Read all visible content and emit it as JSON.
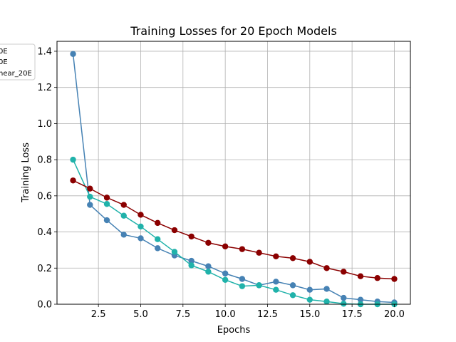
{
  "chart_data": {
    "type": "line",
    "title": "Training Losses for 20 Epoch Models",
    "xlabel": "Epochs",
    "ylabel": "Training Loss",
    "xlim": [
      0.05,
      20.95
    ],
    "ylim": [
      0,
      1.455
    ],
    "xticks": [
      2.5,
      5.0,
      7.5,
      10.0,
      12.5,
      15.0,
      17.5,
      20.0
    ],
    "xtick_labels": [
      "2.5",
      "5.0",
      "7.5",
      "10.0",
      "12.5",
      "15.0",
      "17.5",
      "20.0"
    ],
    "yticks": [
      0.0,
      0.2,
      0.4,
      0.6,
      0.8,
      1.0,
      1.2,
      1.4
    ],
    "ytick_labels": [
      "0.0",
      "0.2",
      "0.4",
      "0.6",
      "0.8",
      "1.0",
      "1.2",
      "1.4"
    ],
    "grid": true,
    "legend_position": "upper-left, partially cut off",
    "x": [
      1,
      2,
      3,
      4,
      5,
      6,
      7,
      8,
      9,
      10,
      11,
      12,
      13,
      14,
      15,
      16,
      17,
      18,
      19,
      20
    ],
    "series": [
      {
        "name": "0E",
        "color": "#4682b4",
        "values": [
          1.385,
          0.55,
          0.465,
          0.385,
          0.365,
          0.31,
          0.27,
          0.24,
          0.21,
          0.17,
          0.14,
          0.105,
          0.125,
          0.105,
          0.08,
          0.085,
          0.035,
          0.025,
          0.015,
          0.01
        ]
      },
      {
        "name": "0E",
        "color": "#20b2aa",
        "values": [
          0.8,
          0.595,
          0.555,
          0.49,
          0.43,
          0.36,
          0.29,
          0.215,
          0.18,
          0.135,
          0.1,
          0.105,
          0.08,
          0.05,
          0.025,
          0.015,
          0.003,
          0.0,
          0.0,
          0.0
        ]
      },
      {
        "name": "near_20E",
        "color": "#8b0000",
        "values": [
          0.685,
          0.64,
          0.59,
          0.55,
          0.495,
          0.45,
          0.41,
          0.375,
          0.34,
          0.32,
          0.305,
          0.285,
          0.265,
          0.255,
          0.235,
          0.2,
          0.18,
          0.155,
          0.145,
          0.14
        ]
      }
    ]
  }
}
